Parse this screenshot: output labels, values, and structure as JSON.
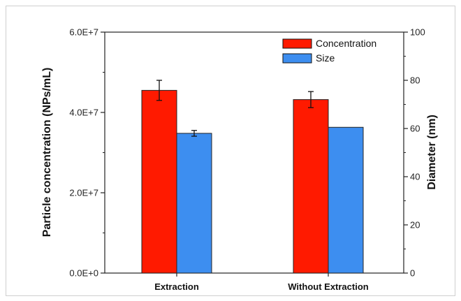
{
  "chart_data": {
    "type": "bar",
    "categories": [
      "Extraction",
      "Without Extraction"
    ],
    "series": [
      {
        "name": "Concentration",
        "axis": "left",
        "color": "#ff1a00",
        "values": [
          45500000,
          43200000
        ],
        "errors": [
          2500000,
          2000000
        ]
      },
      {
        "name": "Size",
        "axis": "right",
        "color": "#3d8ef0",
        "values": [
          58,
          60.5
        ],
        "errors": [
          1.2,
          0
        ]
      }
    ],
    "ylabel": "Particle concentration (NPs/mL)",
    "ylabel_right": "Diameter (nm)",
    "ylim": [
      0,
      60000000
    ],
    "ylim_right": [
      0,
      100
    ],
    "yticks": [
      "0.0E+0",
      "2.0E+7",
      "4.0E+7",
      "6.0E+7"
    ],
    "yticks_right": [
      "0",
      "20",
      "40",
      "60",
      "80",
      "100"
    ],
    "legend_position": "top-right",
    "grid": false
  }
}
